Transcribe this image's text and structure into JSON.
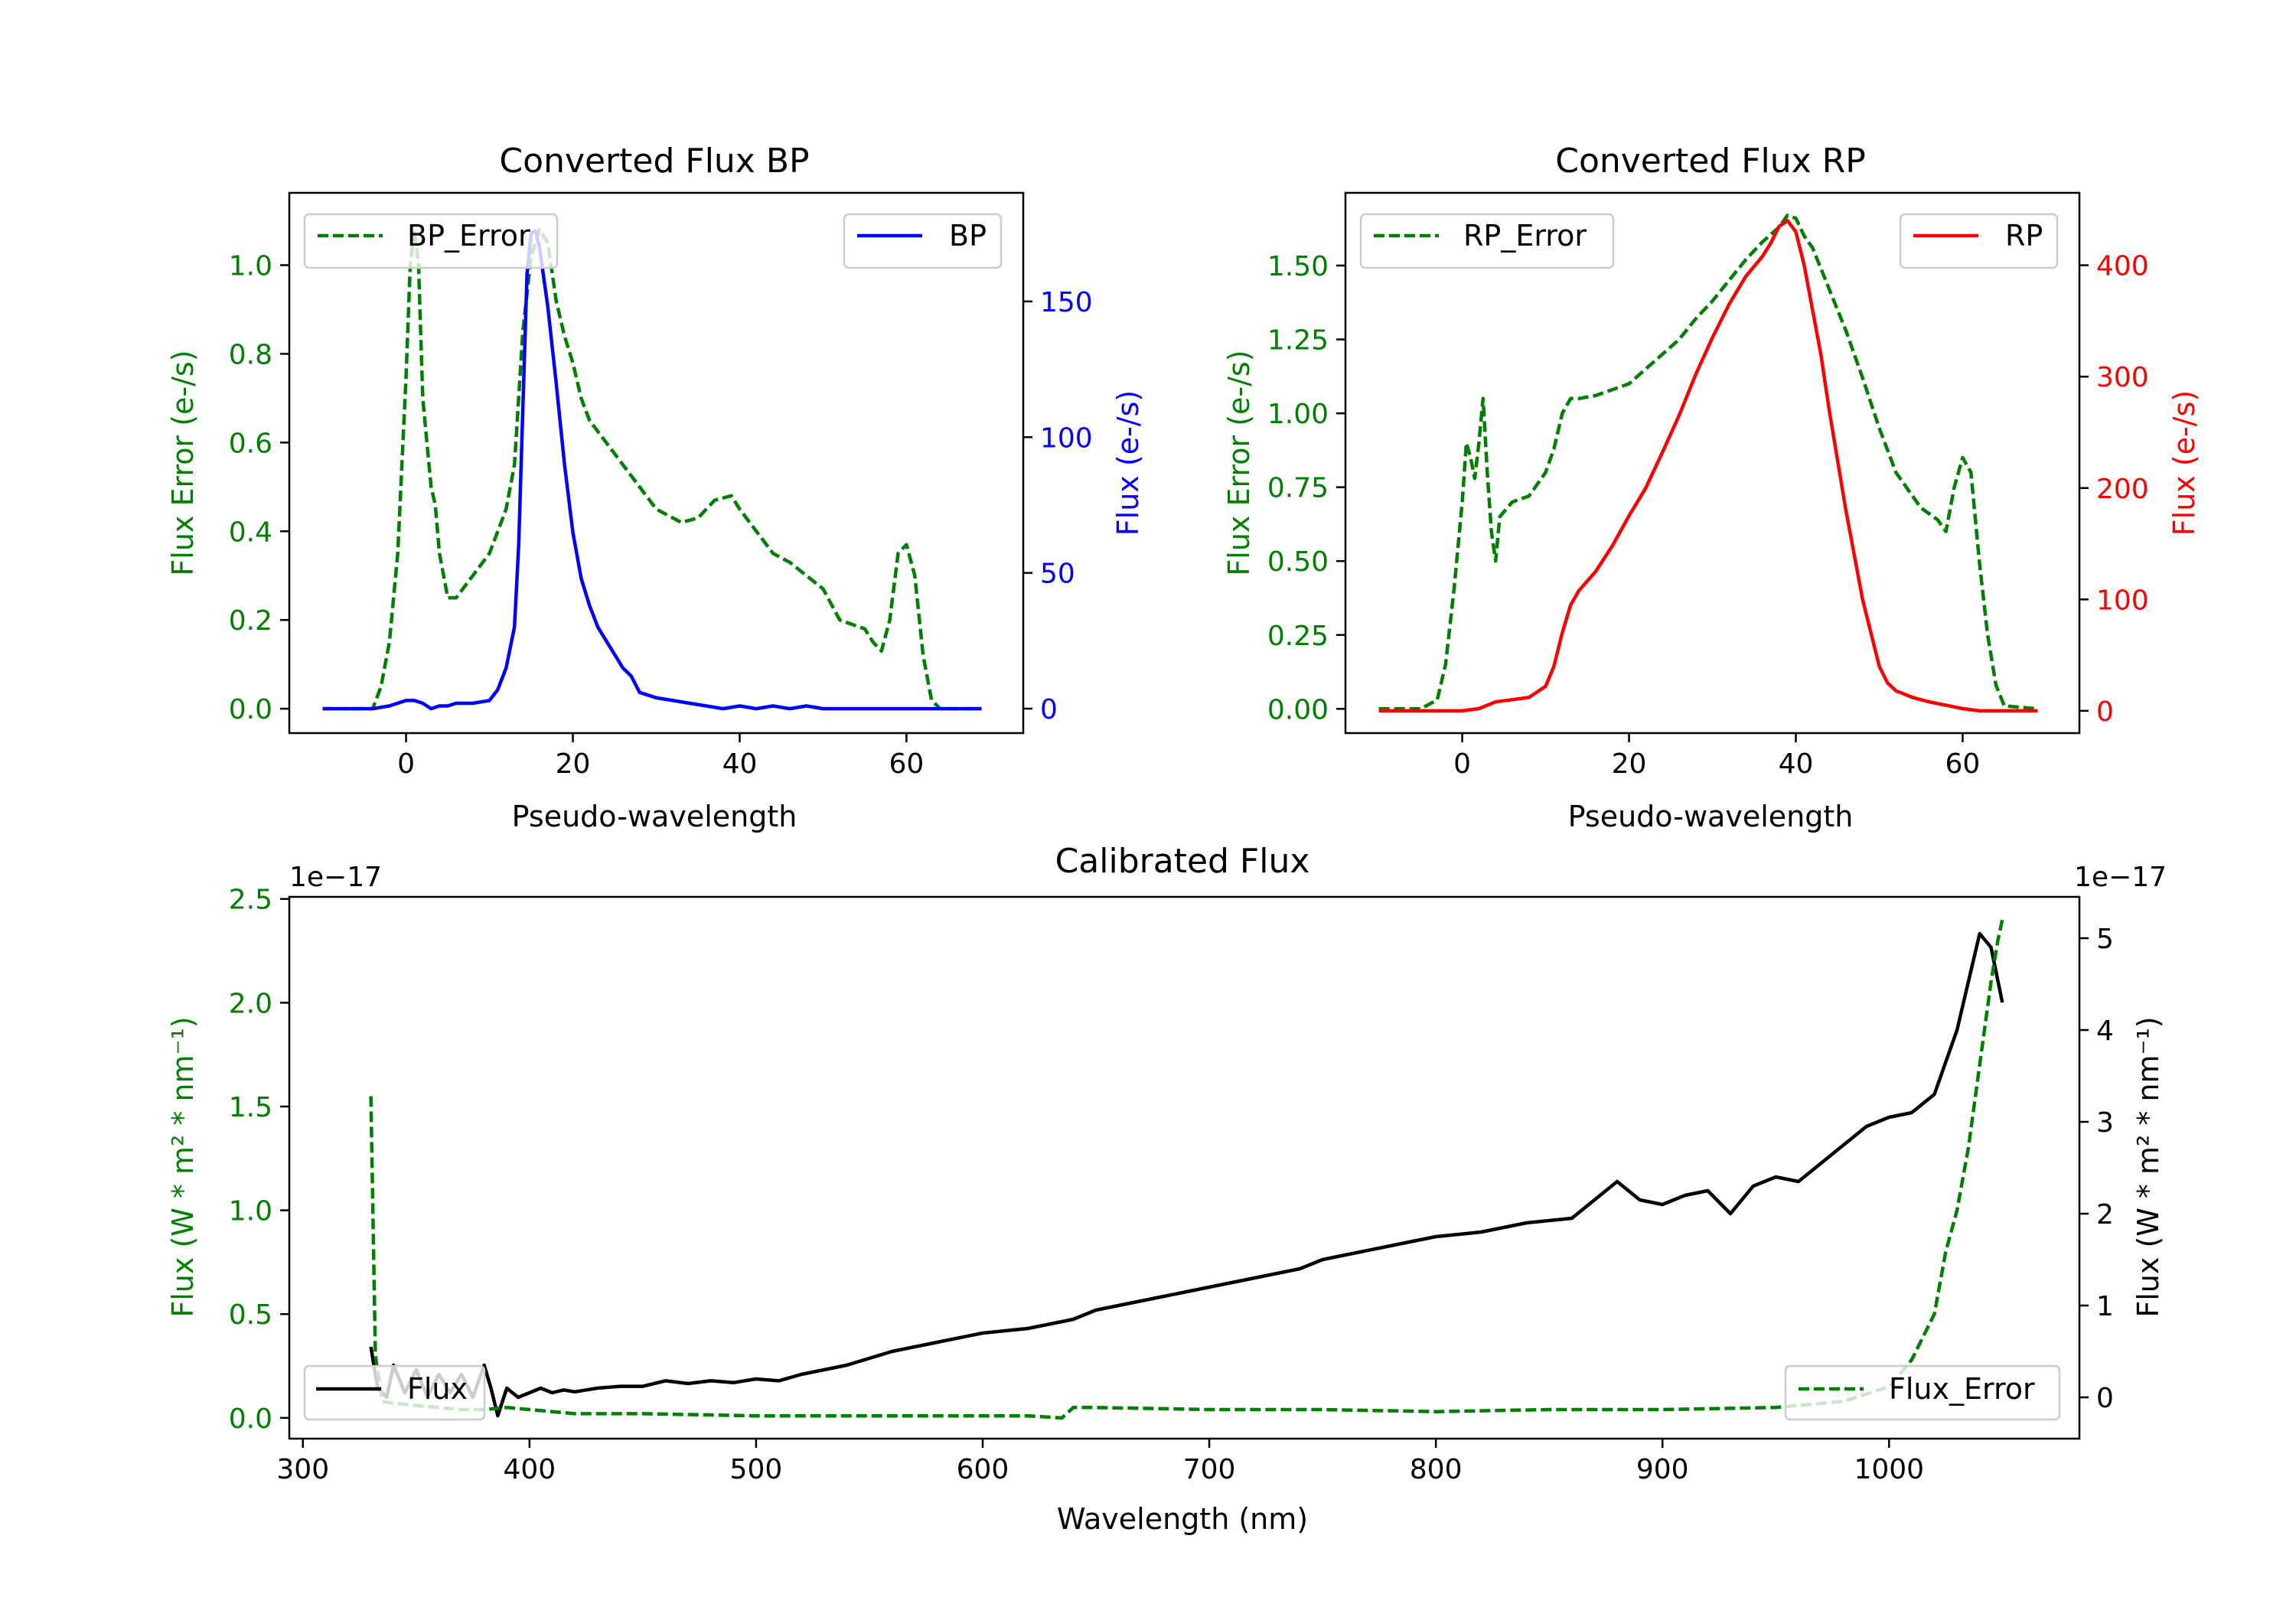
{
  "colors": {
    "error": "#008000",
    "bp": "#0000ff",
    "rp": "#ff0000",
    "flux": "#000000"
  },
  "chart_data": [
    {
      "type": "line",
      "title": "Converted Flux BP",
      "xlabel": "Pseudo-wavelength",
      "xlim": [
        -14,
        74
      ],
      "xticks": [
        0,
        20,
        40,
        60
      ],
      "left_axis": {
        "label": "Flux Error (e-/s)",
        "ylim": [
          -0.055,
          1.163
        ],
        "ticks": [
          0.0,
          0.2,
          0.4,
          0.6,
          0.8,
          1.0
        ],
        "tick_labels": [
          "0.0",
          "0.2",
          "0.4",
          "0.6",
          "0.8",
          "1.0"
        ],
        "color": "error"
      },
      "right_axis": {
        "label": "Flux (e-/s)",
        "ylim": [
          -9,
          190
        ],
        "ticks": [
          0,
          50,
          100,
          150
        ],
        "tick_labels": [
          "0",
          "50",
          "100",
          "150"
        ],
        "color": "bp"
      },
      "series": [
        {
          "name": "BP_Error",
          "axis": "left",
          "style": "dashed",
          "color": "error",
          "x": [
            -10,
            -4,
            -3,
            -2,
            -1,
            0,
            0.5,
            1,
            1.5,
            2,
            3,
            3.5,
            4,
            5,
            6,
            8,
            10,
            11,
            12,
            13,
            13.5,
            14,
            15,
            16,
            17,
            18,
            19,
            20,
            21,
            22,
            24,
            26,
            28,
            30,
            33,
            35,
            37,
            39,
            40,
            42,
            44,
            46,
            48,
            50,
            52,
            55,
            56,
            57,
            58,
            59,
            60,
            61,
            62,
            63,
            64,
            65,
            69
          ],
          "y": [
            0.0,
            0.0,
            0.05,
            0.15,
            0.35,
            0.75,
            1.0,
            1.08,
            1.0,
            0.7,
            0.5,
            0.46,
            0.35,
            0.25,
            0.25,
            0.3,
            0.35,
            0.4,
            0.45,
            0.55,
            0.7,
            0.85,
            1.02,
            1.08,
            1.05,
            0.92,
            0.84,
            0.78,
            0.7,
            0.65,
            0.6,
            0.55,
            0.5,
            0.45,
            0.42,
            0.43,
            0.47,
            0.48,
            0.45,
            0.4,
            0.35,
            0.33,
            0.3,
            0.27,
            0.2,
            0.18,
            0.15,
            0.13,
            0.2,
            0.35,
            0.37,
            0.3,
            0.12,
            0.02,
            0.0,
            0.0,
            0.0
          ]
        },
        {
          "name": "BP",
          "axis": "right",
          "style": "solid",
          "color": "bp",
          "x": [
            -10,
            -4,
            -2,
            0,
            1,
            2,
            3,
            4,
            5,
            6,
            8,
            10,
            11,
            12,
            13,
            13.5,
            14,
            14.5,
            15,
            15.5,
            16,
            17,
            18,
            19,
            20,
            21,
            22,
            23,
            24,
            25,
            26,
            27,
            28,
            30,
            32,
            34,
            36,
            38,
            40,
            42,
            44,
            46,
            48,
            50,
            55,
            60,
            62,
            65,
            69
          ],
          "y": [
            0,
            0,
            1,
            3,
            3,
            2,
            0,
            1,
            1,
            2,
            2,
            3,
            7,
            15,
            30,
            60,
            110,
            160,
            175,
            176,
            170,
            148,
            120,
            90,
            65,
            48,
            38,
            30,
            25,
            20,
            15,
            12,
            6,
            4,
            3,
            2,
            1,
            0,
            1,
            0,
            1,
            0,
            1,
            0,
            0,
            0,
            0,
            0,
            0
          ]
        }
      ]
    },
    {
      "type": "line",
      "title": "Converted Flux RP",
      "xlabel": "Pseudo-wavelength",
      "xlim": [
        -14,
        74
      ],
      "xticks": [
        0,
        20,
        40,
        60
      ],
      "left_axis": {
        "label": "Flux Error (e-/s)",
        "ylim": [
          -0.082,
          1.746
        ],
        "ticks": [
          0.0,
          0.25,
          0.5,
          0.75,
          1.0,
          1.25,
          1.5
        ],
        "tick_labels": [
          "0.00",
          "0.25",
          "0.50",
          "0.75",
          "1.00",
          "1.25",
          "1.50"
        ],
        "color": "error"
      },
      "right_axis": {
        "label": "Flux (e-/s)",
        "ylim": [
          -20,
          465
        ],
        "ticks": [
          0,
          100,
          200,
          300,
          400
        ],
        "tick_labels": [
          "0",
          "100",
          "200",
          "300",
          "400"
        ],
        "color": "rp"
      },
      "series": [
        {
          "name": "RP_Error",
          "axis": "left",
          "style": "dashed",
          "color": "error",
          "x": [
            -10,
            -5,
            -3,
            -2,
            -1,
            0,
            0.5,
            1,
            1.5,
            2,
            2.5,
            3,
            3.5,
            4,
            4.5,
            6,
            8,
            10,
            11,
            12,
            13,
            14,
            16,
            18,
            20,
            22,
            24,
            26,
            28,
            30,
            32,
            34,
            36,
            38,
            39,
            40,
            41,
            42,
            44,
            46,
            48,
            50,
            52,
            54,
            55,
            56,
            57,
            58,
            59,
            60,
            61,
            62,
            63,
            64,
            65,
            69
          ],
          "y": [
            0.0,
            0.0,
            0.03,
            0.15,
            0.4,
            0.7,
            0.9,
            0.85,
            0.78,
            0.9,
            1.05,
            0.8,
            0.6,
            0.5,
            0.65,
            0.7,
            0.72,
            0.8,
            0.88,
            1.0,
            1.05,
            1.05,
            1.06,
            1.08,
            1.1,
            1.15,
            1.2,
            1.25,
            1.32,
            1.38,
            1.45,
            1.52,
            1.58,
            1.63,
            1.67,
            1.66,
            1.6,
            1.56,
            1.42,
            1.28,
            1.12,
            0.95,
            0.8,
            0.72,
            0.68,
            0.66,
            0.64,
            0.6,
            0.75,
            0.85,
            0.8,
            0.5,
            0.25,
            0.08,
            0.01,
            0.0
          ]
        },
        {
          "name": "RP",
          "axis": "right",
          "style": "solid",
          "color": "rp",
          "x": [
            -10,
            -4,
            0,
            2,
            4,
            6,
            8,
            10,
            11,
            12,
            13,
            14,
            16,
            18,
            20,
            22,
            24,
            26,
            28,
            30,
            32,
            34,
            36,
            37,
            38,
            39,
            40,
            41,
            42,
            43,
            44,
            46,
            48,
            50,
            51,
            52,
            54,
            56,
            58,
            60,
            62,
            65,
            69
          ],
          "y": [
            0,
            0,
            0,
            2,
            8,
            10,
            12,
            22,
            40,
            70,
            95,
            108,
            125,
            148,
            175,
            200,
            232,
            265,
            302,
            335,
            365,
            390,
            408,
            420,
            435,
            440,
            430,
            400,
            360,
            320,
            270,
            180,
            100,
            40,
            25,
            18,
            12,
            8,
            5,
            2,
            0,
            0,
            0
          ]
        }
      ]
    },
    {
      "type": "line",
      "title": "Calibrated Flux",
      "xlabel": "Wavelength (nm)",
      "xlim": [
        294,
        1084
      ],
      "xticks": [
        300,
        400,
        500,
        600,
        700,
        800,
        900,
        1000
      ],
      "left_axis": {
        "label": "Flux (W * m² * nm⁻¹)",
        "offset": "1e−17",
        "ylim": [
          -0.1,
          2.51
        ],
        "ticks": [
          0.0,
          0.5,
          1.0,
          1.5,
          2.0,
          2.5
        ],
        "tick_labels": [
          "0.0",
          "0.5",
          "1.0",
          "1.5",
          "2.0",
          "2.5"
        ],
        "color": "error"
      },
      "right_axis": {
        "label": "Flux (W * m² * nm⁻¹)",
        "offset": "1e−17",
        "ylim": [
          -0.45,
          5.45
        ],
        "ticks": [
          0,
          1,
          2,
          3,
          4,
          5
        ],
        "tick_labels": [
          "0",
          "1",
          "2",
          "3",
          "4",
          "5"
        ],
        "color": "flux"
      },
      "series": [
        {
          "name": "Flux",
          "axis": "right",
          "style": "solid",
          "color": "flux",
          "x": [
            330,
            333,
            337,
            340,
            345,
            350,
            355,
            360,
            365,
            370,
            375,
            380,
            383,
            386,
            390,
            395,
            400,
            405,
            410,
            415,
            420,
            430,
            440,
            450,
            460,
            470,
            480,
            490,
            500,
            510,
            520,
            540,
            560,
            580,
            600,
            620,
            640,
            645,
            650,
            660,
            670,
            680,
            690,
            700,
            710,
            720,
            730,
            740,
            750,
            760,
            780,
            800,
            820,
            840,
            860,
            880,
            890,
            900,
            910,
            920,
            930,
            940,
            950,
            960,
            970,
            980,
            990,
            1000,
            1010,
            1020,
            1030,
            1040,
            1045,
            1050
          ],
          "y": [
            0.55,
            0.1,
            0.0,
            0.35,
            0.05,
            0.3,
            0.0,
            0.25,
            0.05,
            0.25,
            0.0,
            0.35,
            0.1,
            -0.2,
            0.1,
            0.0,
            0.05,
            0.1,
            0.05,
            0.08,
            0.06,
            0.1,
            0.12,
            0.12,
            0.18,
            0.15,
            0.18,
            0.16,
            0.2,
            0.18,
            0.25,
            0.35,
            0.5,
            0.6,
            0.7,
            0.75,
            0.85,
            0.9,
            0.95,
            1.0,
            1.05,
            1.1,
            1.15,
            1.2,
            1.25,
            1.3,
            1.35,
            1.4,
            1.5,
            1.55,
            1.65,
            1.75,
            1.8,
            1.9,
            1.95,
            2.35,
            2.15,
            2.1,
            2.2,
            2.25,
            2.0,
            2.3,
            2.4,
            2.35,
            2.55,
            2.75,
            2.95,
            3.05,
            3.1,
            3.3,
            4.0,
            5.05,
            4.9,
            4.3
          ]
        },
        {
          "name": "Flux_Error",
          "axis": "left",
          "style": "dashed",
          "color": "error",
          "x": [
            330,
            332,
            335,
            340,
            350,
            360,
            370,
            380,
            390,
            400,
            420,
            450,
            500,
            550,
            600,
            620,
            635,
            640,
            650,
            700,
            750,
            800,
            850,
            900,
            950,
            980,
            1000,
            1010,
            1020,
            1025,
            1030,
            1035,
            1040,
            1045,
            1048,
            1050
          ],
          "y": [
            1.55,
            0.3,
            0.08,
            0.07,
            0.06,
            0.05,
            0.04,
            0.04,
            0.05,
            0.04,
            0.02,
            0.02,
            0.01,
            0.01,
            0.01,
            0.01,
            0.0,
            0.05,
            0.05,
            0.04,
            0.04,
            0.03,
            0.04,
            0.04,
            0.05,
            0.08,
            0.15,
            0.28,
            0.5,
            0.8,
            1.0,
            1.3,
            1.7,
            2.1,
            2.3,
            2.4
          ]
        }
      ]
    }
  ]
}
